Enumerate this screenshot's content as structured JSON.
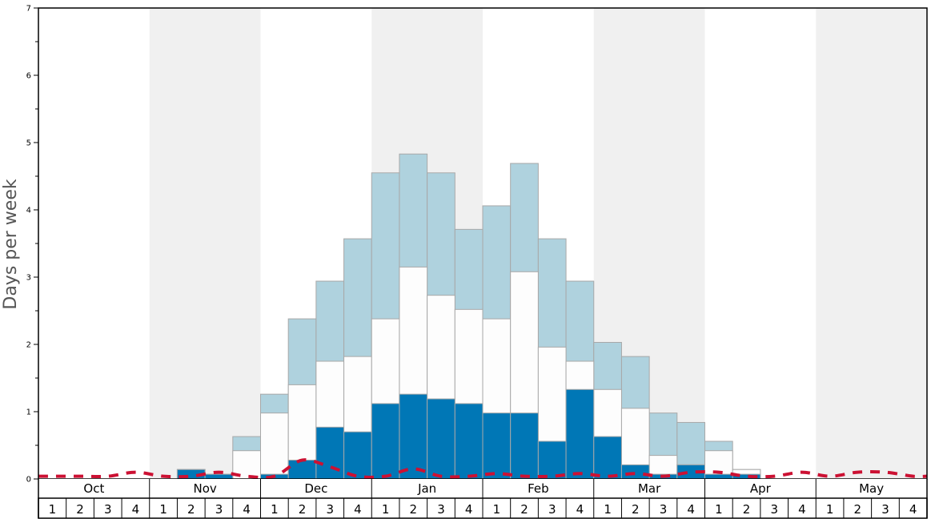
{
  "chart_data": {
    "type": "bar",
    "ylabel": "Days per week",
    "ylim": [
      0,
      7
    ],
    "yticks": [
      0,
      1,
      2,
      3,
      4,
      5,
      6,
      7
    ],
    "months": [
      "Oct",
      "Nov",
      "Dec",
      "Jan",
      "Feb",
      "Mar",
      "Apr",
      "May"
    ],
    "weeks": [
      "1",
      "2",
      "3",
      "4"
    ],
    "colors": {
      "light_blue": "#afd2de",
      "white": "#fdfdfd",
      "dark_blue": "#0077b6",
      "dashed_line": "#cc1133",
      "shade": "#f0f0f0"
    },
    "series": [
      {
        "color_key": "light_blue",
        "values": [
          0,
          0,
          0,
          0,
          0,
          0.14,
          0.07,
          0.63,
          1.26,
          2.38,
          2.94,
          3.57,
          4.55,
          4.83,
          4.55,
          3.71,
          4.06,
          4.69,
          3.57,
          2.94,
          2.03,
          1.82,
          0.98,
          0.84,
          0.56,
          0.14,
          0,
          0,
          0,
          0,
          0,
          0
        ]
      },
      {
        "color_key": "white",
        "values": [
          0,
          0,
          0,
          0,
          0,
          0.14,
          0.07,
          0.42,
          0.98,
          1.4,
          1.75,
          1.82,
          2.38,
          3.15,
          2.73,
          2.52,
          2.38,
          3.08,
          1.96,
          1.75,
          1.33,
          1.05,
          0.35,
          0.21,
          0.42,
          0.14,
          0,
          0,
          0,
          0,
          0,
          0
        ]
      },
      {
        "color_key": "dark_blue",
        "values": [
          0,
          0,
          0,
          0,
          0,
          0.14,
          0.07,
          0,
          0.07,
          0.28,
          0.77,
          0.7,
          1.12,
          1.26,
          1.19,
          1.12,
          0.98,
          0.98,
          0.56,
          1.33,
          0.63,
          0.21,
          0.07,
          0.21,
          0.07,
          0.07,
          0,
          0,
          0,
          0,
          0,
          0
        ]
      }
    ],
    "dashed_line": [
      0.04,
      0.04,
      0.04,
      0.1,
      0.04,
      0.04,
      0.1,
      0.04,
      0.04,
      0.28,
      0.18,
      0.04,
      0.04,
      0.15,
      0.04,
      0.04,
      0.08,
      0.04,
      0.04,
      0.08,
      0.04,
      0.08,
      0.04,
      0.1,
      0.1,
      0.04,
      0.04,
      0.1,
      0.04,
      0.1,
      0.1,
      0.04
    ]
  }
}
